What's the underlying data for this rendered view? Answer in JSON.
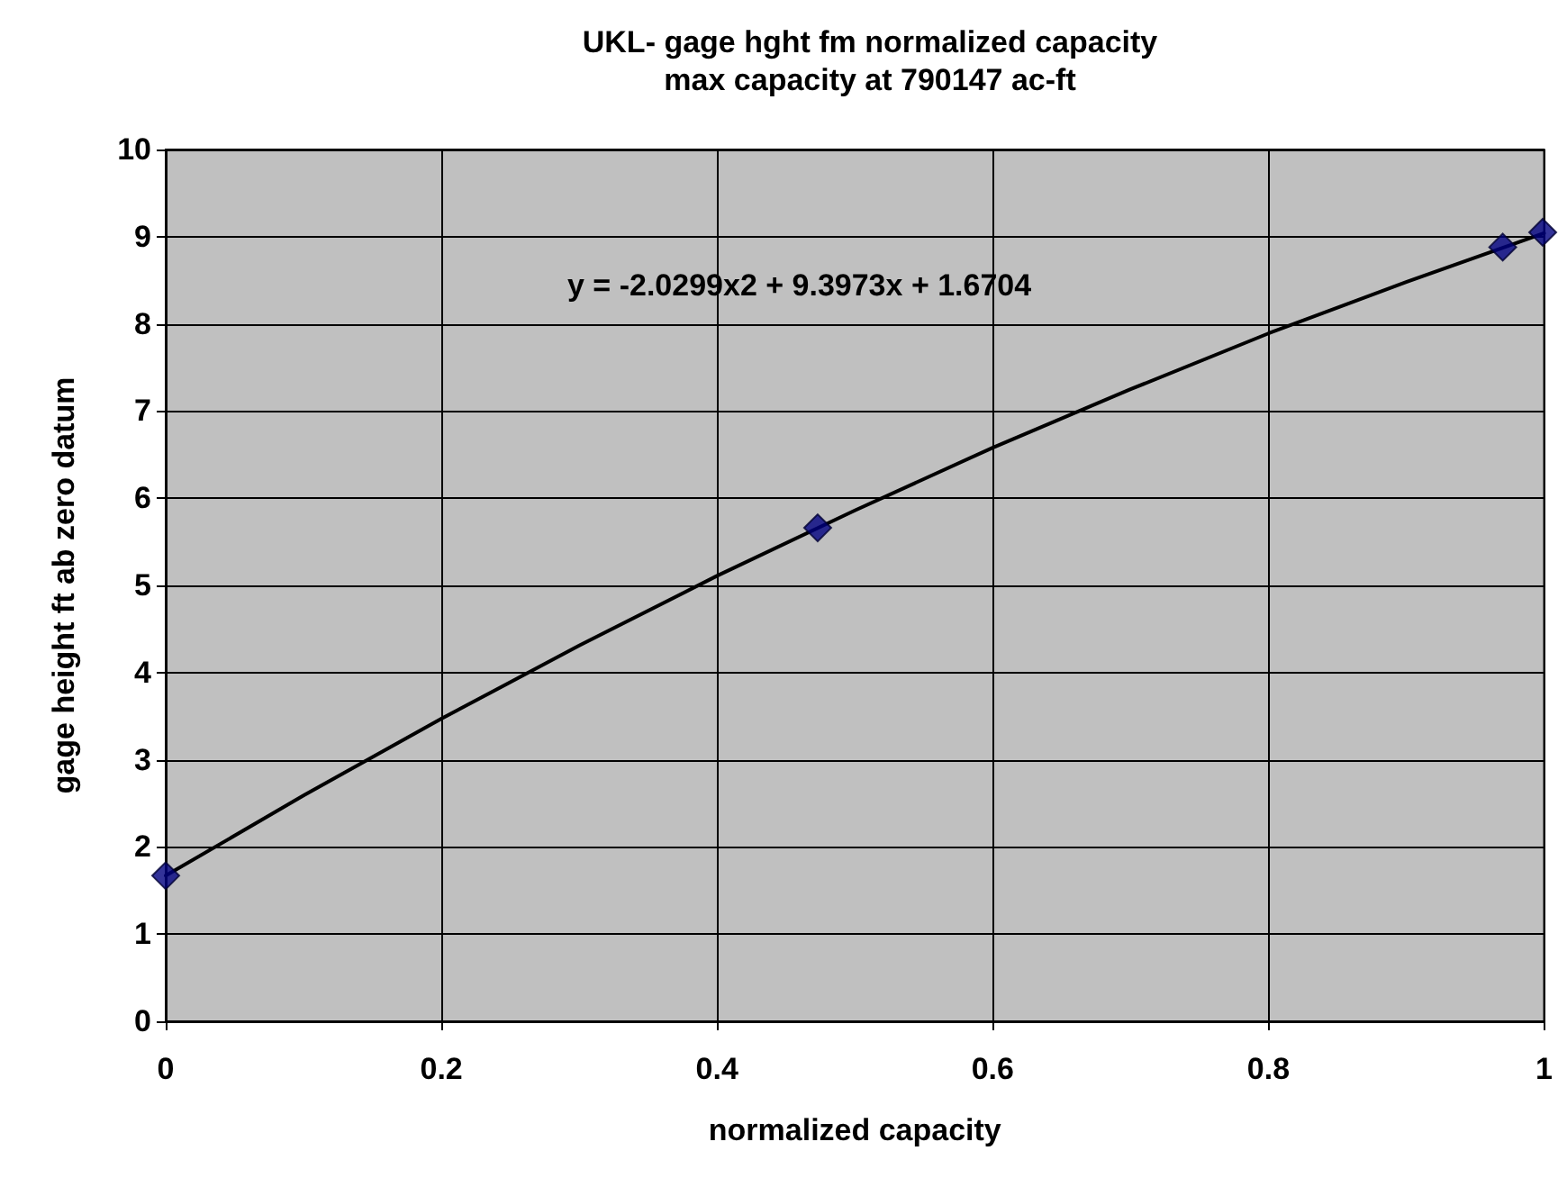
{
  "chart_data": {
    "type": "scatter",
    "title": "UKL- gage hght fm normalized capacity",
    "subtitle": "max capacity at 790147 ac-ft",
    "xlabel": "normalized capacity",
    "ylabel": "gage height ft ab zero datum",
    "annotations": [
      "y = -2.0299x2 + 9.3973x + 1.6704"
    ],
    "series": [
      {
        "color": "#000080",
        "marker": "diamond",
        "x": [
          0,
          0.473,
          0.97,
          0.999
        ],
        "values": [
          1.67,
          5.66,
          8.88,
          9.05
        ]
      },
      {
        "type": "line",
        "marker": "none",
        "color": "#000000",
        "x": [
          0,
          0.1,
          0.2,
          0.3,
          0.4,
          0.5,
          0.6,
          0.7,
          0.8,
          0.9,
          1.0
        ],
        "values": [
          1.67,
          2.59,
          3.47,
          4.31,
          5.11,
          5.86,
          6.58,
          7.25,
          7.89,
          8.48,
          9.04
        ]
      }
    ],
    "xlim": [
      0,
      1
    ],
    "xticks": [
      0,
      0.2,
      0.4,
      0.6,
      0.8,
      1
    ],
    "ylim": [
      0,
      10
    ],
    "yticks": [
      0,
      1,
      2,
      3,
      4,
      5,
      6,
      7,
      8,
      9,
      10
    ],
    "grid": true,
    "line_style": "solid"
  }
}
